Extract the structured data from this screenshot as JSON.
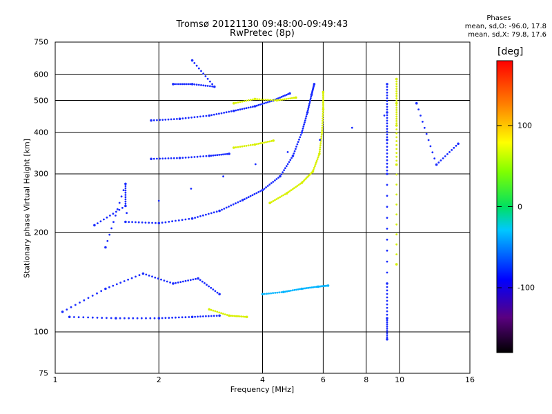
{
  "chart_data": {
    "type": "scatter",
    "title": "Tromsø 20121130 09:48:00-09:49:43",
    "subtitle": "RwPretec (8p)",
    "xlabel": "Frequency [MHz]",
    "ylabel": "Stationary phase Virtual Height [km]",
    "xscale": "log",
    "yscale": "log",
    "xlim": [
      1,
      16
    ],
    "ylim": [
      75,
      750
    ],
    "xticks": [
      "1",
      "2",
      "4",
      "6",
      "8",
      "10",
      "16"
    ],
    "yticks": [
      "75",
      "100",
      "200",
      "300",
      "400",
      "500",
      "600",
      "750"
    ],
    "grid": true,
    "phase_stats": {
      "title": "Phases",
      "line_o": "mean, sd,O: -96.0, 17.8",
      "line_x": "mean, sd,X:  79.8, 17.6"
    },
    "colorbar": {
      "unit": "[deg]",
      "range": [
        -180,
        180
      ],
      "ticks": [
        "100",
        "0",
        "-100"
      ],
      "colormap": "rainbow"
    },
    "traces": [
      {
        "name": "",
        "phase": -100,
        "points": [
          [
            1.6,
            215
          ],
          [
            2.0,
            213
          ],
          [
            2.5,
            220
          ],
          [
            3.0,
            232
          ],
          [
            3.5,
            250
          ],
          [
            4.0,
            268
          ],
          [
            4.5,
            295
          ],
          [
            4.9,
            340
          ],
          [
            5.2,
            400
          ],
          [
            5.4,
            460
          ],
          [
            5.55,
            520
          ],
          [
            5.65,
            560
          ]
        ]
      },
      {
        "name": "",
        "phase": 80,
        "points": [
          [
            4.2,
            245
          ],
          [
            4.7,
            262
          ],
          [
            5.2,
            282
          ],
          [
            5.6,
            305
          ],
          [
            5.85,
            345
          ],
          [
            5.95,
            400
          ],
          [
            6.0,
            470
          ],
          [
            6.0,
            530
          ]
        ]
      },
      {
        "name": "",
        "phase": -100,
        "points": [
          [
            1.9,
            333
          ],
          [
            2.3,
            335
          ],
          [
            2.8,
            340
          ],
          [
            3.2,
            345
          ]
        ]
      },
      {
        "name": "",
        "phase": 80,
        "points": [
          [
            3.3,
            360
          ],
          [
            3.8,
            368
          ],
          [
            4.3,
            378
          ]
        ]
      },
      {
        "name": "",
        "phase": -100,
        "points": [
          [
            1.9,
            435
          ],
          [
            2.3,
            440
          ],
          [
            2.8,
            450
          ],
          [
            3.3,
            465
          ],
          [
            3.8,
            480
          ],
          [
            4.3,
            500
          ],
          [
            4.8,
            525
          ]
        ]
      },
      {
        "name": "",
        "phase": 80,
        "points": [
          [
            3.3,
            490
          ],
          [
            3.8,
            505
          ],
          [
            4.4,
            500
          ],
          [
            5.0,
            510
          ]
        ]
      },
      {
        "name": "",
        "phase": -100,
        "points": [
          [
            1.1,
            111
          ],
          [
            1.5,
            110
          ],
          [
            2.0,
            110
          ],
          [
            2.5,
            111
          ],
          [
            3.0,
            112
          ]
        ]
      },
      {
        "name": "",
        "phase": -100,
        "points": [
          [
            1.05,
            115
          ],
          [
            1.4,
            135
          ],
          [
            1.8,
            150
          ],
          [
            2.2,
            140
          ],
          [
            2.6,
            145
          ],
          [
            3.0,
            130
          ]
        ]
      },
      {
        "name": "",
        "phase": 80,
        "points": [
          [
            2.8,
            117
          ],
          [
            3.2,
            112
          ],
          [
            3.6,
            111
          ]
        ]
      },
      {
        "name": "",
        "phase": -60,
        "points": [
          [
            4.0,
            130
          ],
          [
            4.6,
            132
          ],
          [
            5.2,
            135
          ],
          [
            5.8,
            137
          ],
          [
            6.2,
            138
          ]
        ]
      },
      {
        "name": "",
        "phase": -100,
        "points": [
          [
            2.2,
            560
          ],
          [
            2.5,
            560
          ],
          [
            2.9,
            550
          ],
          [
            2.5,
            660
          ]
        ]
      },
      {
        "name": "",
        "phase": -100,
        "points": [
          [
            9.2,
            560
          ],
          [
            9.2,
            460
          ],
          [
            9.2,
            380
          ],
          [
            9.2,
            300
          ],
          [
            9.2,
            140
          ],
          [
            9.2,
            110
          ],
          [
            9.2,
            95
          ]
        ]
      },
      {
        "name": "",
        "phase": 80,
        "points": [
          [
            9.8,
            580
          ],
          [
            9.8,
            490
          ],
          [
            9.8,
            420
          ],
          [
            9.8,
            320
          ],
          [
            9.8,
            160
          ]
        ]
      },
      {
        "name": "",
        "phase": -100,
        "points": [
          [
            1.4,
            180
          ],
          [
            1.6,
            280
          ],
          [
            1.6,
            240
          ],
          [
            1.3,
            210
          ],
          [
            11.2,
            490
          ],
          [
            12.8,
            320
          ],
          [
            14.8,
            370
          ]
        ]
      }
    ]
  }
}
